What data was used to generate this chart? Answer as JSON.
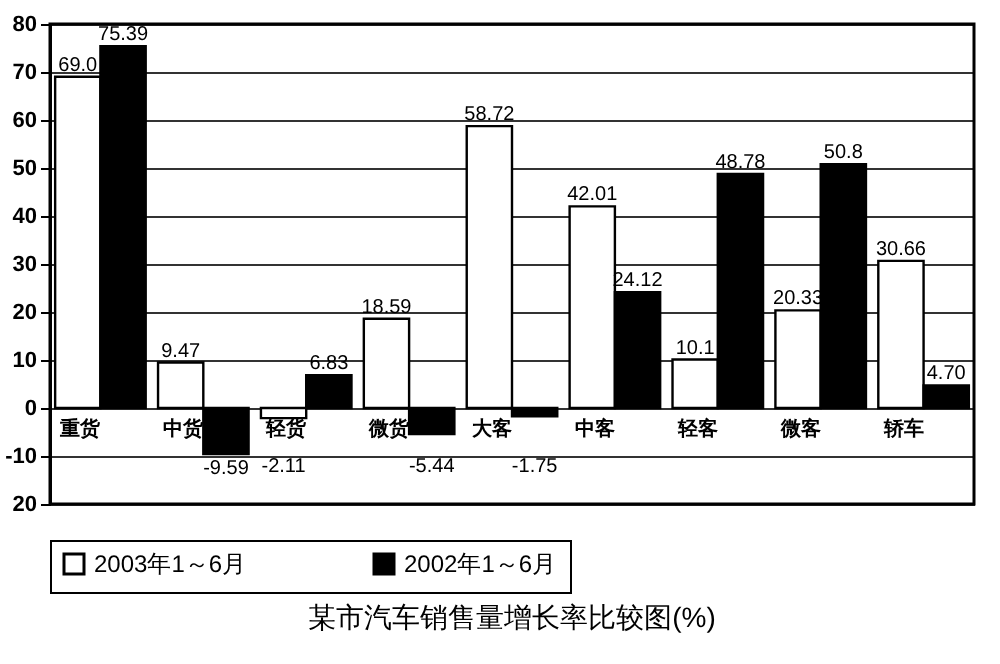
{
  "chart_data": {
    "type": "bar",
    "title": "某市汽车销售量增长率比较图(%)",
    "categories": [
      "重货",
      "中货",
      "轻货",
      "微货",
      "大客",
      "中客",
      "轻客",
      "微客",
      "轿车"
    ],
    "series": [
      {
        "name": "2003年1～6月",
        "color": "#ffffff",
        "values": [
          69.0,
          9.47,
          -2.11,
          18.59,
          58.72,
          42.01,
          10.1,
          20.33,
          30.66
        ],
        "value_labels": [
          "69.0",
          "9.47",
          "-2.11",
          "18.59",
          "58.72",
          "42.01",
          "10.1",
          "20.33",
          "30.66"
        ]
      },
      {
        "name": "2002年1～6月",
        "color": "#000000",
        "values": [
          75.39,
          -9.59,
          6.83,
          -5.44,
          -1.75,
          24.12,
          48.78,
          50.8,
          4.7
        ],
        "value_labels": [
          "75.39",
          "-9.59",
          "6.83",
          "-5.44",
          "-1.75",
          "24.12",
          "48.78",
          "50.8",
          "4.70"
        ]
      }
    ],
    "ylim": [
      -20,
      80
    ],
    "yticks": [
      {
        "value": -20,
        "label": "20"
      },
      {
        "value": -10,
        "label": "-10"
      },
      0,
      10,
      20,
      30,
      40,
      50,
      60,
      70,
      80
    ],
    "grid": "y",
    "legend": "bottom"
  }
}
